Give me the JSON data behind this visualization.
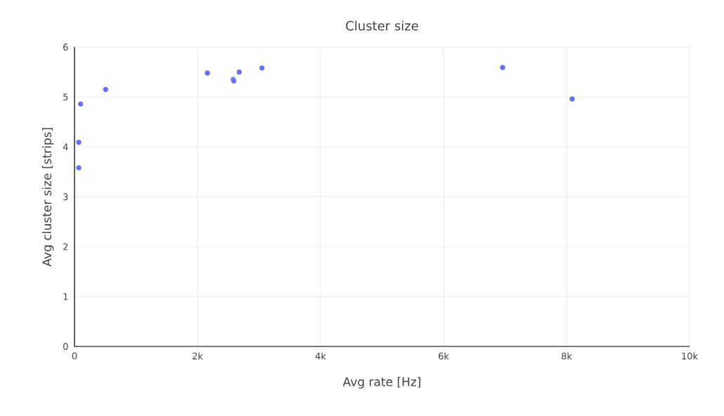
{
  "chart_data": {
    "type": "scatter",
    "title": "Cluster size",
    "xlabel": "Avg rate [Hz]",
    "ylabel": "Avg cluster size [strips]",
    "x": [
      69,
      69,
      99,
      506,
      2160,
      2580,
      2590,
      2678,
      3047,
      6960,
      8091
    ],
    "values": [
      3.58,
      4.09,
      4.86,
      5.15,
      5.48,
      5.35,
      5.32,
      5.5,
      5.58,
      5.59,
      4.96
    ],
    "color": "#636efa",
    "grid": true,
    "xlim": [
      0,
      10000
    ],
    "ylim": [
      0,
      6
    ],
    "xticks": [
      0,
      {
        "value": 2000,
        "label": "2k"
      },
      {
        "value": 4000,
        "label": "4k"
      },
      {
        "value": 6000,
        "label": "6k"
      },
      {
        "value": 8000,
        "label": "8k"
      },
      {
        "value": 10000,
        "label": "10k"
      }
    ],
    "yticks": [
      0,
      1,
      2,
      3,
      4,
      5,
      6
    ]
  }
}
